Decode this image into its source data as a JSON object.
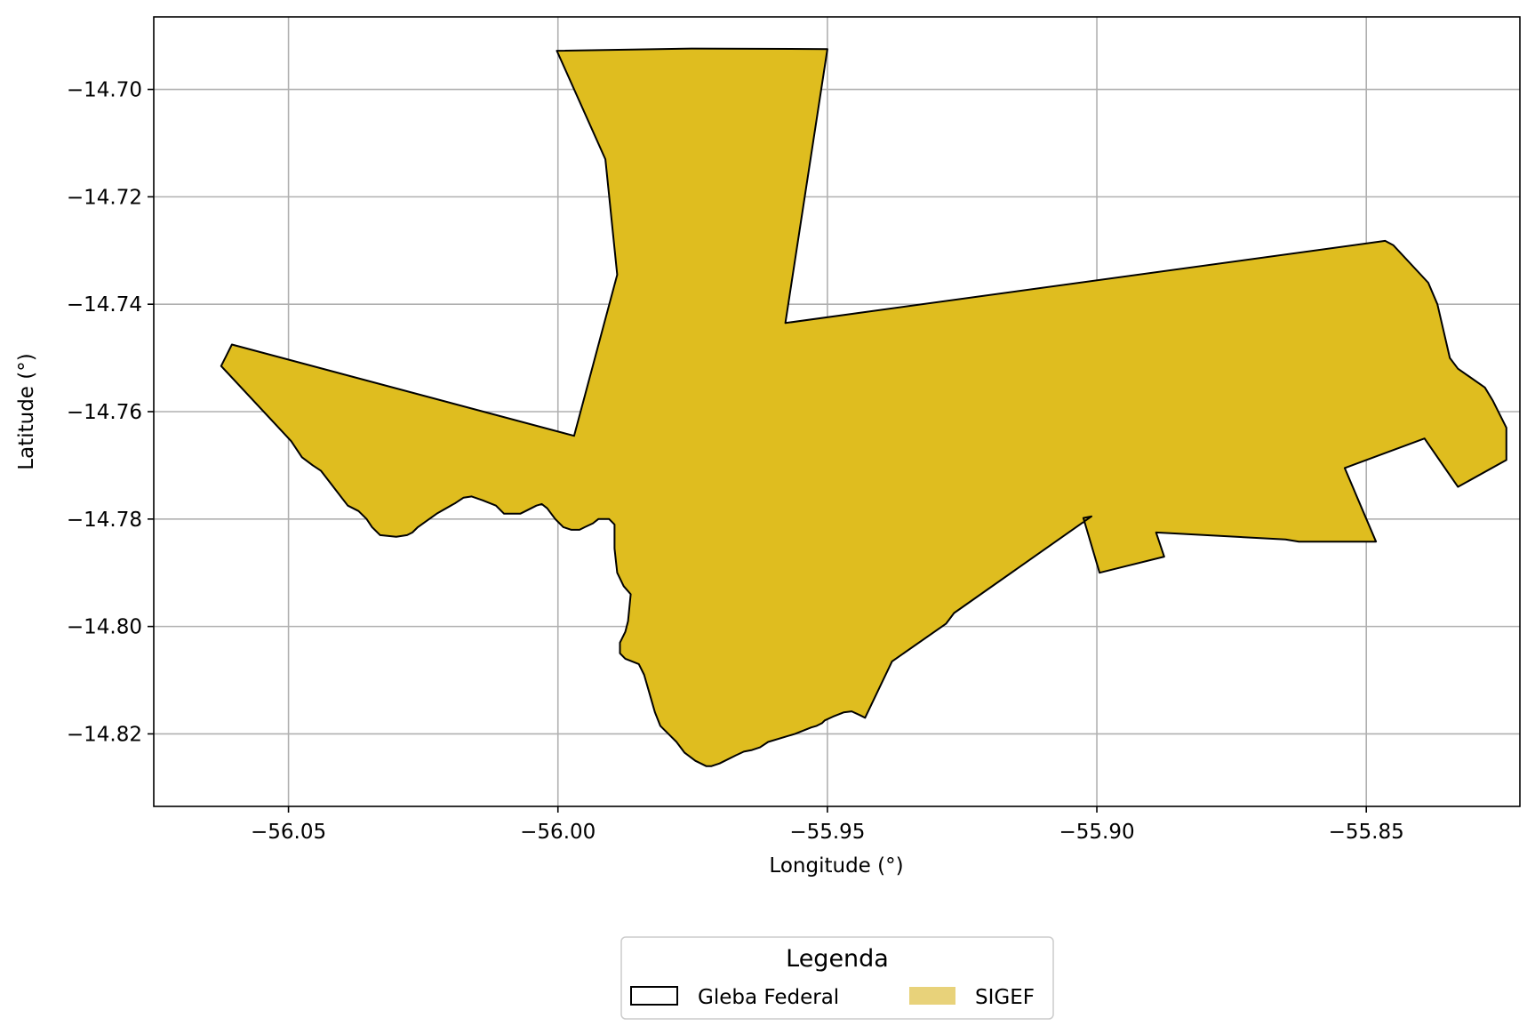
{
  "chart_data": {
    "type": "map",
    "xlabel": "Longitude (°)",
    "ylabel": "Latitude (°)",
    "xlim": [
      -56.075,
      -55.8215
    ],
    "ylim": [
      -14.8335,
      -14.6865
    ],
    "x_ticks": [
      {
        "value": -56.05,
        "label": "−56.05"
      },
      {
        "value": -56.0,
        "label": "−56.00"
      },
      {
        "value": -55.95,
        "label": "−55.95"
      },
      {
        "value": -55.9,
        "label": "−55.90"
      },
      {
        "value": -55.85,
        "label": "−55.85"
      }
    ],
    "y_ticks": [
      {
        "value": -14.7,
        "label": "−14.70"
      },
      {
        "value": -14.72,
        "label": "−14.72"
      },
      {
        "value": -14.74,
        "label": "−14.74"
      },
      {
        "value": -14.76,
        "label": "−14.76"
      },
      {
        "value": -14.78,
        "label": "−14.78"
      },
      {
        "value": -14.8,
        "label": "−14.80"
      },
      {
        "value": -14.82,
        "label": "−14.82"
      }
    ],
    "grid": true,
    "legend": {
      "title": "Legenda",
      "placement": "bottom-center",
      "entries": [
        {
          "label": "Gleba Federal",
          "style": "outline",
          "color": "#000000"
        },
        {
          "label": "SIGEF",
          "style": "fill",
          "color": "#e8d27a"
        }
      ]
    },
    "polygon_fill": "#dfbd1f",
    "polygon_stroke": "#000000",
    "polygon": [
      [
        -56.0002,
        -14.6928
      ],
      [
        -55.9752,
        -14.6924
      ],
      [
        -55.95,
        -14.6925
      ],
      [
        -55.9578,
        -14.7435
      ],
      [
        -55.8465,
        -14.7282
      ],
      [
        -55.845,
        -14.729
      ],
      [
        -55.8385,
        -14.736
      ],
      [
        -55.8368,
        -14.74
      ],
      [
        -55.8345,
        -14.75
      ],
      [
        -55.833,
        -14.752
      ],
      [
        -55.828,
        -14.7555
      ],
      [
        -55.8265,
        -14.758
      ],
      [
        -55.824,
        -14.763
      ],
      [
        -55.824,
        -14.769
      ],
      [
        -55.833,
        -14.774
      ],
      [
        -55.8392,
        -14.765
      ],
      [
        -55.854,
        -14.7705
      ],
      [
        -55.8482,
        -14.7842
      ],
      [
        -55.8625,
        -14.7842
      ],
      [
        -55.865,
        -14.7838
      ],
      [
        -55.889,
        -14.7825
      ],
      [
        -55.8875,
        -14.787
      ],
      [
        -55.8995,
        -14.79
      ],
      [
        -55.9025,
        -14.7798
      ],
      [
        -55.901,
        -14.7795
      ],
      [
        -55.9265,
        -14.7975
      ],
      [
        -55.928,
        -14.7995
      ],
      [
        -55.938,
        -14.8065
      ],
      [
        -55.943,
        -14.817
      ],
      [
        -55.944,
        -14.8165
      ],
      [
        -55.9455,
        -14.8158
      ],
      [
        -55.947,
        -14.816
      ],
      [
        -55.949,
        -14.8168
      ],
      [
        -55.9505,
        -14.8175
      ],
      [
        -55.951,
        -14.818
      ],
      [
        -55.952,
        -14.8185
      ],
      [
        -55.953,
        -14.8188
      ],
      [
        -55.956,
        -14.82
      ],
      [
        -55.961,
        -14.8215
      ],
      [
        -55.9625,
        -14.8225
      ],
      [
        -55.964,
        -14.823
      ],
      [
        -55.9655,
        -14.8233
      ],
      [
        -55.967,
        -14.824
      ],
      [
        -55.97,
        -14.8255
      ],
      [
        -55.9715,
        -14.826
      ],
      [
        -55.9725,
        -14.826
      ],
      [
        -55.9745,
        -14.825
      ],
      [
        -55.9765,
        -14.8235
      ],
      [
        -55.978,
        -14.8215
      ],
      [
        -55.9795,
        -14.82
      ],
      [
        -55.981,
        -14.8185
      ],
      [
        -55.982,
        -14.816
      ],
      [
        -55.984,
        -14.809
      ],
      [
        -55.985,
        -14.807
      ],
      [
        -55.9875,
        -14.806
      ],
      [
        -55.9885,
        -14.805
      ],
      [
        -55.9885,
        -14.803
      ],
      [
        -55.9875,
        -14.801
      ],
      [
        -55.987,
        -14.799
      ],
      [
        -55.9865,
        -14.794
      ],
      [
        -55.9878,
        -14.7925
      ],
      [
        -55.989,
        -14.79
      ],
      [
        -55.9895,
        -14.7855
      ],
      [
        -55.9895,
        -14.781
      ],
      [
        -55.9905,
        -14.78
      ],
      [
        -55.9925,
        -14.78
      ],
      [
        -55.9935,
        -14.7808
      ],
      [
        -55.995,
        -14.7815
      ],
      [
        -55.996,
        -14.782
      ],
      [
        -55.9975,
        -14.782
      ],
      [
        -55.999,
        -14.7815
      ],
      [
        -56.0005,
        -14.78
      ],
      [
        -56.002,
        -14.778
      ],
      [
        -56.003,
        -14.7772
      ],
      [
        -56.004,
        -14.7775
      ],
      [
        -56.006,
        -14.7785
      ],
      [
        -56.007,
        -14.779
      ],
      [
        -56.0085,
        -14.779
      ],
      [
        -56.01,
        -14.779
      ],
      [
        -56.0115,
        -14.7775
      ],
      [
        -56.014,
        -14.7765
      ],
      [
        -56.016,
        -14.7758
      ],
      [
        -56.0175,
        -14.776
      ],
      [
        -56.019,
        -14.777
      ],
      [
        -56.0225,
        -14.779
      ],
      [
        -56.026,
        -14.7815
      ],
      [
        -56.027,
        -14.7825
      ],
      [
        -56.028,
        -14.783
      ],
      [
        -56.03,
        -14.7833
      ],
      [
        -56.033,
        -14.783
      ],
      [
        -56.0345,
        -14.7815
      ],
      [
        -56.0355,
        -14.78
      ],
      [
        -56.037,
        -14.7785
      ],
      [
        -56.039,
        -14.7775
      ],
      [
        -56.044,
        -14.771
      ],
      [
        -56.0455,
        -14.77
      ],
      [
        -56.0475,
        -14.7685
      ],
      [
        -56.0495,
        -14.7655
      ],
      [
        -56.0625,
        -14.7515
      ],
      [
        -56.0605,
        -14.7475
      ],
      [
        -55.997,
        -14.7645
      ],
      [
        -55.989,
        -14.7345
      ],
      [
        -55.9912,
        -14.713
      ],
      [
        -56.0002,
        -14.6928
      ]
    ]
  }
}
